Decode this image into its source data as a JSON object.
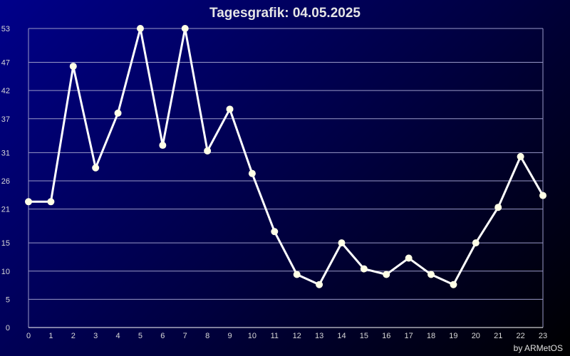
{
  "chart_data": {
    "type": "line",
    "title": "Tagesgrafik: 04.05.2025",
    "credit": "by ARMetOS",
    "x": [
      0,
      1,
      2,
      3,
      4,
      5,
      6,
      7,
      8,
      9,
      10,
      11,
      12,
      13,
      14,
      15,
      16,
      17,
      18,
      19,
      20,
      21,
      22,
      23
    ],
    "x_tick_labels": [
      "0",
      "1",
      "2",
      "3",
      "4",
      "5",
      "6",
      "7",
      "8",
      "9",
      "10",
      "11",
      "12",
      "13",
      "14",
      "15",
      "16",
      "17",
      "18",
      "19",
      "20",
      "21",
      "22",
      "23"
    ],
    "series": [
      {
        "values": [
          22.3,
          22.3,
          46.3,
          28.3,
          38.0,
          53.0,
          32.3,
          53.0,
          31.3,
          38.7,
          27.3,
          17.0,
          9.4,
          7.6,
          15.0,
          10.4,
          9.4,
          12.3,
          9.4,
          7.6,
          15.0,
          21.3,
          30.3,
          23.4
        ],
        "color": "#ffffff"
      }
    ],
    "y_ticks": [
      0,
      5,
      10,
      15,
      21,
      26,
      31,
      37,
      42,
      47,
      53
    ],
    "ylim": [
      0,
      53
    ],
    "xlim": [
      0,
      23
    ],
    "grid": true,
    "colors": {
      "background_start": "#00008a",
      "background_end": "#000000",
      "line": "#ffffff",
      "marker": "#ffffe6",
      "grid": "#9a9ac8"
    }
  }
}
